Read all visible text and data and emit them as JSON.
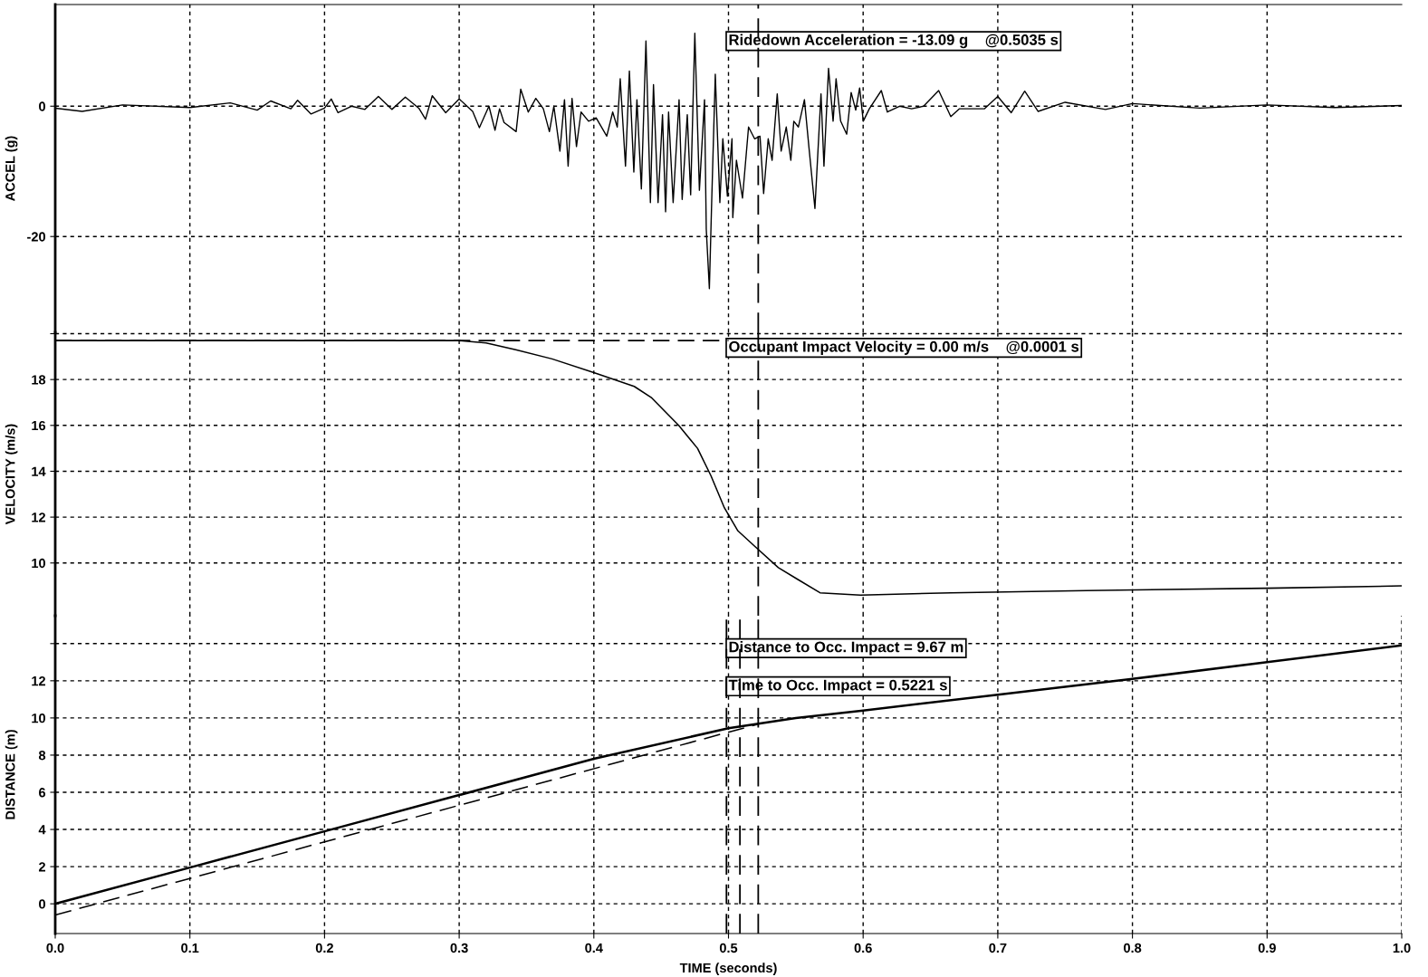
{
  "chart_data": [
    {
      "type": "line",
      "ylabel": "ACCEL (g)",
      "xlim": [
        0,
        1
      ],
      "ylim": [
        -34.7,
        15.6
      ],
      "xticks": [
        0.1,
        0.2,
        0.3,
        0.4,
        0.5,
        0.6,
        0.7,
        0.8,
        0.9
      ],
      "yticks": [
        -20,
        0
      ],
      "grid": true,
      "tick_labels": "y",
      "line_style": "solid",
      "series": [
        {
          "color": "#000000",
          "x": [
            0,
            0.02,
            0.05,
            0.1,
            0.13,
            0.15,
            0.16,
            0.175,
            0.18,
            0.19,
            0.2,
            0.205,
            0.21,
            0.22,
            0.23,
            0.24,
            0.25,
            0.26,
            0.27,
            0.275,
            0.28,
            0.29,
            0.3,
            0.31,
            0.315,
            0.3221,
            0.3266,
            0.33,
            0.3333,
            0.3423,
            0.3457,
            0.3513,
            0.3569,
            0.3625,
            0.367,
            0.3703,
            0.3748,
            0.3782,
            0.3809,
            0.3838,
            0.3871,
            0.3905,
            0.3961,
            0.4017,
            0.4096,
            0.414,
            0.4174,
            0.4196,
            0.4235,
            0.4264,
            0.4297,
            0.432,
            0.4353,
            0.4387,
            0.442,
            0.4443,
            0.4477,
            0.451,
            0.4533,
            0.4555,
            0.4589,
            0.4633,
            0.4656,
            0.4694,
            0.4719,
            0.475,
            0.4784,
            0.4822,
            0.4835,
            0.4858,
            0.4875,
            0.4902,
            0.4936,
            0.4958,
            0.4992,
            0.5026,
            0.5032,
            0.5059,
            0.5104,
            0.5149,
            0.5194,
            0.5234,
            0.5261,
            0.5295,
            0.5324,
            0.5362,
            0.5391,
            0.5429,
            0.5463,
            0.5485,
            0.5519,
            0.5564,
            0.5597,
            0.5642,
            0.5687,
            0.5709,
            0.5743,
            0.5777,
            0.5799,
            0.5833,
            0.5878,
            0.5911,
            0.5945,
            0.5974,
            0.6001,
            0.6046,
            0.6135,
            0.618,
            0.627,
            0.636,
            0.6449,
            0.6561,
            0.6651,
            0.6714,
            0.69,
            0.7,
            0.71,
            0.72,
            0.73,
            0.75,
            0.78,
            0.8,
            0.85,
            0.9,
            0.95,
            1.0
          ],
          "values": [
            -0.3,
            -0.8,
            0.2,
            -0.2,
            0.5,
            -0.6,
            0.8,
            -0.4,
            0.9,
            -1.2,
            -0.3,
            1.1,
            -1.0,
            0.0,
            -0.5,
            1.5,
            -0.5,
            1.4,
            -0.3,
            -2.0,
            1.6,
            -1.0,
            1.1,
            -0.8,
            -3.3,
            0.0,
            -3.7,
            -0.4,
            -2.5,
            -3.9,
            2.6,
            -0.9,
            1.2,
            -0.4,
            -3.9,
            0.0,
            -6.9,
            1.0,
            -9.2,
            1.2,
            -6.2,
            -0.9,
            -2.3,
            -1.8,
            -4.6,
            -0.9,
            -3.2,
            4.2,
            -9.2,
            5.4,
            -10.1,
            1.0,
            -12.7,
            10.0,
            -14.8,
            3.3,
            -14.8,
            -1.3,
            -16.2,
            -0.9,
            -14.8,
            1.0,
            -14.3,
            -1.3,
            -13.6,
            11.2,
            -12.9,
            1.0,
            -18.9,
            -28.0,
            -14.8,
            4.9,
            -14.8,
            -5.0,
            -13.8,
            -5.0,
            -17.1,
            -8.3,
            -14.1,
            -3.2,
            -5.0,
            -4.6,
            -13.4,
            -5.0,
            -8.3,
            1.9,
            -6.9,
            -3.2,
            -8.3,
            -2.3,
            -3.2,
            1.0,
            -6.2,
            -15.7,
            1.9,
            -9.2,
            5.8,
            -2.3,
            4.2,
            -2.3,
            -4.3,
            2.1,
            -0.6,
            2.8,
            -2.3,
            -0.4,
            2.4,
            -0.9,
            0.0,
            -0.4,
            0.0,
            2.4,
            -1.6,
            -0.4,
            -0.4,
            1.5,
            -1.0,
            2.3,
            -0.8,
            0.6,
            -0.5,
            0.4,
            -0.3,
            0.2,
            -0.2,
            0.1
          ]
        }
      ],
      "ref_lines": [
        {
          "axis": "x",
          "value": 0.5221,
          "line_style": "dashed",
          "color": "#000000"
        }
      ],
      "annotations": [
        "Ridedown Acceleration = -13.09 g    @0.5035 s"
      ]
    },
    {
      "type": "line",
      "ylabel": "VELOCITY (m/s)",
      "xlim": [
        0,
        1
      ],
      "ylim": [
        7.7,
        20.06
      ],
      "xticks": [
        0.1,
        0.2,
        0.3,
        0.4,
        0.5,
        0.6,
        0.7,
        0.8,
        0.9
      ],
      "yticks": [
        10,
        12,
        14,
        16,
        18,
        {
          "value": 20,
          "label": null
        }
      ],
      "grid": true,
      "tick_labels": "y",
      "series": [
        {
          "color": "#000000",
          "line_style": "solid",
          "x": [
            0,
            0.1,
            0.2,
            0.3,
            0.32,
            0.342,
            0.369,
            0.4,
            0.43,
            0.443,
            0.463,
            0.477,
            0.487,
            0.497,
            0.507,
            0.52,
            0.537,
            0.551,
            0.568,
            0.598,
            0.665,
            0.766,
            0.9,
            1.0
          ],
          "values": [
            19.7,
            19.7,
            19.7,
            19.7,
            19.6,
            19.3,
            18.9,
            18.3,
            17.7,
            17.2,
            16.0,
            15.0,
            13.8,
            12.4,
            11.4,
            10.7,
            9.8,
            9.3,
            8.7,
            8.6,
            8.7,
            8.8,
            8.9,
            9.0
          ]
        },
        {
          "color": "#000000",
          "line_style": "dashed",
          "x": [
            0,
            0.5
          ],
          "values": [
            19.7,
            19.7
          ]
        }
      ],
      "ref_lines": [
        {
          "axis": "x",
          "value": 0.5221,
          "line_style": "dashed",
          "color": "#000000"
        }
      ],
      "annotations": [
        "Occupant Impact Velocity = 0.00 m/s    @0.0001 s"
      ]
    },
    {
      "type": "line",
      "ylabel": "DISTANCE (m)",
      "xlabel": "TIME (seconds)",
      "xlim": [
        0,
        1
      ],
      "ylim": [
        -1.6,
        15.5
      ],
      "xticks": [
        {
          "value": 0,
          "label": "0.0"
        },
        0.1,
        0.2,
        0.3,
        0.4,
        0.5,
        0.6,
        0.7,
        0.8,
        0.9,
        {
          "value": 1,
          "label": "1.0"
        }
      ],
      "yticks": [
        0,
        2,
        4,
        6,
        8,
        10,
        12,
        {
          "value": 14,
          "label": null
        }
      ],
      "grid": true,
      "series": [
        {
          "color": "#000000",
          "line_style": "solid",
          "x": [
            0,
            0.1,
            0.2,
            0.3,
            0.4,
            0.5,
            0.55,
            0.6,
            0.7,
            0.8,
            0.9,
            1.0
          ],
          "values": [
            0,
            1.95,
            3.9,
            5.85,
            7.8,
            9.45,
            10.0,
            10.4,
            11.25,
            12.1,
            13.0,
            13.9
          ]
        },
        {
          "color": "#000000",
          "line_style": "dashed",
          "x": [
            0,
            0.5221
          ],
          "values": [
            -0.6,
            9.67
          ]
        }
      ],
      "ref_lines": [
        {
          "axis": "x",
          "value": 0.4985,
          "line_style": "dashed",
          "color": "#000000"
        },
        {
          "axis": "x",
          "value": 0.5085,
          "line_style": "dashed",
          "color": "#000000"
        },
        {
          "axis": "x",
          "value": 0.5221,
          "line_style": "dashed",
          "color": "#000000"
        }
      ],
      "annotations": [
        "Distance to Occ. Impact = 9.67 m",
        "Time to Occ. Impact = 0.5221 s"
      ]
    }
  ]
}
